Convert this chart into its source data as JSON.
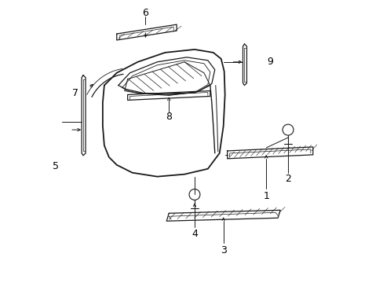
{
  "bg_color": "#ffffff",
  "line_color": "#1a1a1a",
  "label_color": "#000000",
  "font_size": 9,
  "figsize": [
    4.89,
    3.6
  ],
  "dpi": 100
}
